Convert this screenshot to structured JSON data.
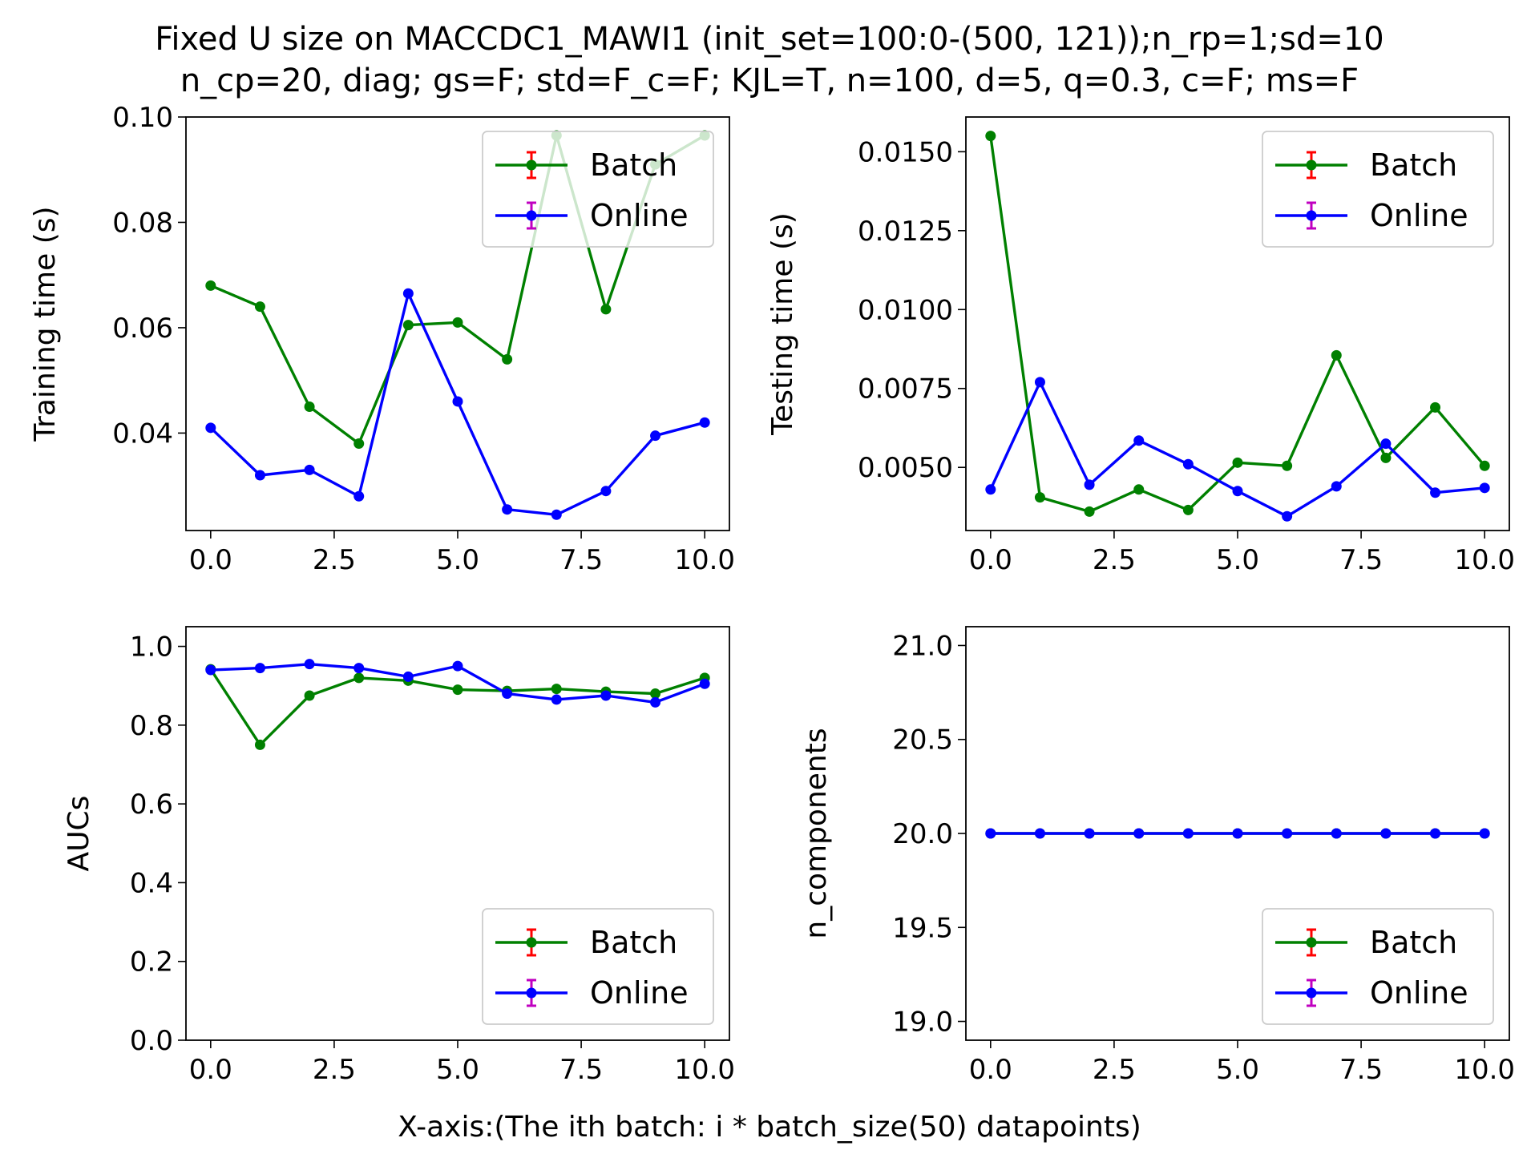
{
  "figure": {
    "title_line1": "Fixed U size on MACCDC1_MAWI1 (init_set=100:0-(500, 121));n_rp=1;sd=10",
    "title_line2": "n_cp=20, diag; gs=F; std=F_c=F; KJL=T, n=100, d=5, q=0.3, c=F; ms=F",
    "xlabel": "X-axis:(The ith batch: i * batch_size(50) datapoints)"
  },
  "colors": {
    "batch": "#008000",
    "online": "#0000ff",
    "batch_err": "#ff0000",
    "online_err": "#c000c0"
  },
  "chart_data": [
    {
      "type": "line",
      "ylabel": "Training time (s)",
      "x": [
        0,
        1,
        2,
        3,
        4,
        5,
        6,
        7,
        8,
        9,
        10
      ],
      "xlim": [
        -0.5,
        10.5
      ],
      "xticks": [
        0.0,
        2.5,
        5.0,
        7.5,
        10.0
      ],
      "xtick_labels": [
        "0.0",
        "2.5",
        "5.0",
        "7.5",
        "10.0"
      ],
      "ylim": [
        0.0215,
        0.1
      ],
      "yticks": [
        0.04,
        0.06,
        0.08,
        0.1
      ],
      "ytick_labels": [
        "0.04",
        "0.06",
        "0.08",
        "0.10"
      ],
      "legend": "top-right",
      "series": [
        {
          "name": "Batch",
          "color": "#008000",
          "values": [
            0.068,
            0.064,
            0.045,
            0.038,
            0.0605,
            0.061,
            0.054,
            0.0965,
            0.0635,
            0.091,
            0.0965
          ]
        },
        {
          "name": "Online",
          "color": "#0000ff",
          "values": [
            0.041,
            0.032,
            0.033,
            0.028,
            0.0665,
            0.046,
            0.0255,
            0.0245,
            0.029,
            0.0395,
            0.042
          ]
        }
      ]
    },
    {
      "type": "line",
      "ylabel": "Testing time (s)",
      "x": [
        0,
        1,
        2,
        3,
        4,
        5,
        6,
        7,
        8,
        9,
        10
      ],
      "xlim": [
        -0.5,
        10.5
      ],
      "xticks": [
        0.0,
        2.5,
        5.0,
        7.5,
        10.0
      ],
      "xtick_labels": [
        "0.0",
        "2.5",
        "5.0",
        "7.5",
        "10.0"
      ],
      "ylim": [
        0.003,
        0.0161
      ],
      "yticks": [
        0.005,
        0.0075,
        0.01,
        0.0125,
        0.015
      ],
      "ytick_labels": [
        "0.0050",
        "0.0075",
        "0.0100",
        "0.0125",
        "0.0150"
      ],
      "legend": "top-right",
      "series": [
        {
          "name": "Batch",
          "color": "#008000",
          "values": [
            0.0155,
            0.00405,
            0.0036,
            0.0043,
            0.00365,
            0.00515,
            0.00505,
            0.00855,
            0.0053,
            0.0069,
            0.00505
          ]
        },
        {
          "name": "Online",
          "color": "#0000ff",
          "values": [
            0.0043,
            0.0077,
            0.00445,
            0.00585,
            0.0051,
            0.00425,
            0.00345,
            0.0044,
            0.00575,
            0.0042,
            0.00435
          ]
        }
      ]
    },
    {
      "type": "line",
      "ylabel": "AUCs",
      "x": [
        0,
        1,
        2,
        3,
        4,
        5,
        6,
        7,
        8,
        9,
        10
      ],
      "xlim": [
        -0.5,
        10.5
      ],
      "xticks": [
        0.0,
        2.5,
        5.0,
        7.5,
        10.0
      ],
      "xtick_labels": [
        "0.0",
        "2.5",
        "5.0",
        "7.5",
        "10.0"
      ],
      "ylim": [
        0.0,
        1.05
      ],
      "yticks": [
        0.0,
        0.2,
        0.4,
        0.6,
        0.8,
        1.0
      ],
      "ytick_labels": [
        "0.0",
        "0.2",
        "0.4",
        "0.6",
        "0.8",
        "1.0"
      ],
      "legend": "bottom-right",
      "series": [
        {
          "name": "Batch",
          "color": "#008000",
          "values": [
            0.942,
            0.75,
            0.875,
            0.92,
            0.913,
            0.89,
            0.887,
            0.892,
            0.885,
            0.88,
            0.92
          ]
        },
        {
          "name": "Online",
          "color": "#0000ff",
          "values": [
            0.94,
            0.945,
            0.955,
            0.945,
            0.923,
            0.95,
            0.88,
            0.865,
            0.875,
            0.858,
            0.905
          ]
        }
      ]
    },
    {
      "type": "line",
      "ylabel": "n_components",
      "x": [
        0,
        1,
        2,
        3,
        4,
        5,
        6,
        7,
        8,
        9,
        10
      ],
      "xlim": [
        -0.5,
        10.5
      ],
      "xticks": [
        0.0,
        2.5,
        5.0,
        7.5,
        10.0
      ],
      "xtick_labels": [
        "0.0",
        "2.5",
        "5.0",
        "7.5",
        "10.0"
      ],
      "ylim": [
        18.9,
        21.1
      ],
      "yticks": [
        19.0,
        19.5,
        20.0,
        20.5,
        21.0
      ],
      "ytick_labels": [
        "19.0",
        "19.5",
        "20.0",
        "20.5",
        "21.0"
      ],
      "legend": "bottom-right",
      "series": [
        {
          "name": "Batch",
          "color": "#008000",
          "values": [
            20,
            20,
            20,
            20,
            20,
            20,
            20,
            20,
            20,
            20,
            20
          ]
        },
        {
          "name": "Online",
          "color": "#0000ff",
          "values": [
            20,
            20,
            20,
            20,
            20,
            20,
            20,
            20,
            20,
            20,
            20
          ]
        }
      ]
    }
  ]
}
